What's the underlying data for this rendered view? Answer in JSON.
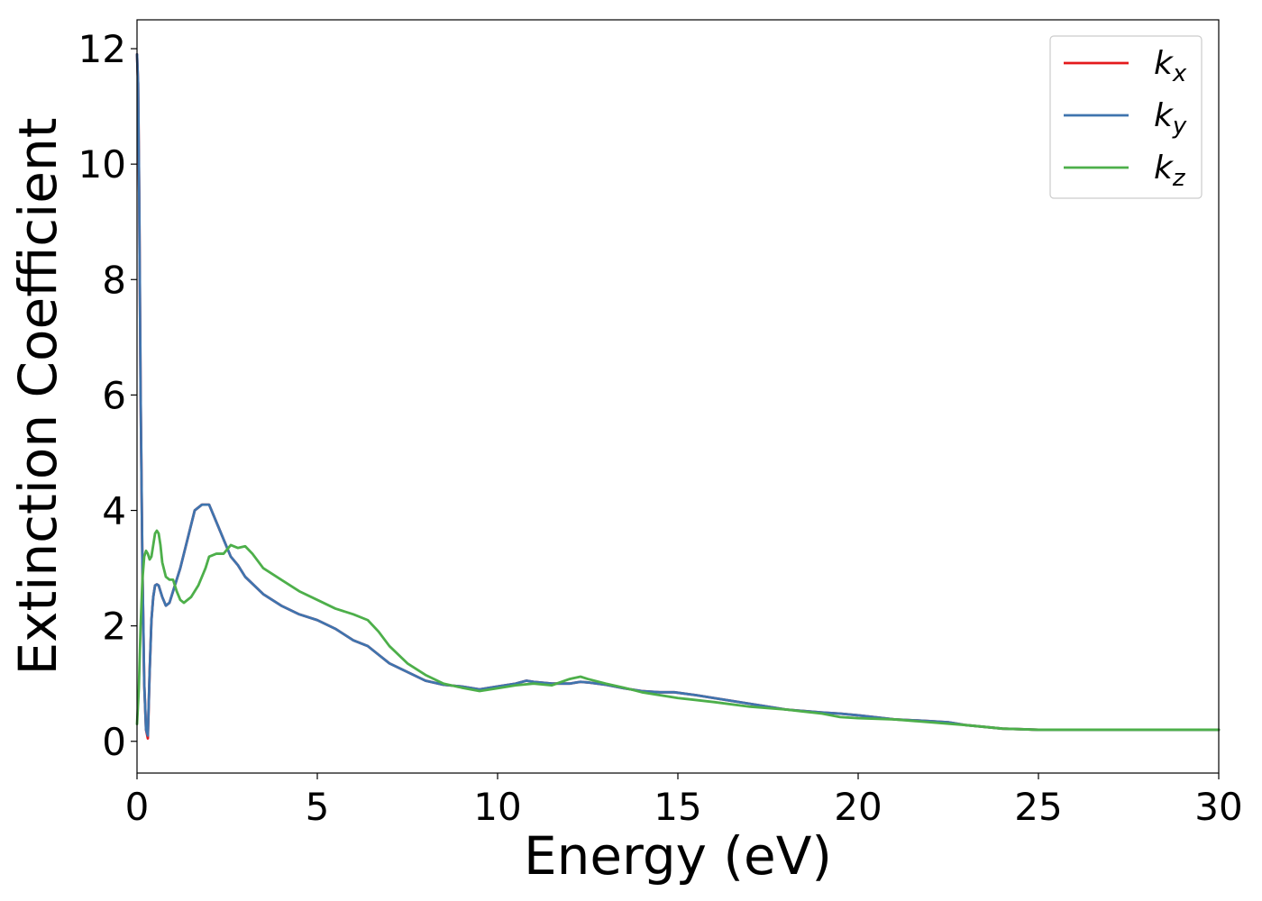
{
  "chart_data": {
    "type": "line",
    "title": "",
    "xlabel": "Energy (eV)",
    "ylabel": "Extinction Coefficient",
    "xlim": [
      0,
      30
    ],
    "ylim": [
      -0.55,
      12.5
    ],
    "xticks": [
      0,
      5,
      10,
      15,
      20,
      25,
      30
    ],
    "yticks": [
      0,
      2,
      4,
      6,
      8,
      10,
      12
    ],
    "grid": false,
    "legend_position": "top-right",
    "series": [
      {
        "name": "k",
        "subscript": "x",
        "color": "#e41a1c",
        "x": [
          0,
          0.03,
          0.06,
          0.1,
          0.15,
          0.2,
          0.25,
          0.3,
          0.35,
          0.4,
          0.45,
          0.5,
          0.55,
          0.6,
          0.7,
          0.8,
          0.9,
          1.0,
          1.2,
          1.4,
          1.6,
          1.8,
          2.0,
          2.2,
          2.4,
          2.6,
          2.8,
          3.0,
          3.5,
          4.0,
          4.5,
          5.0,
          5.5,
          6.0,
          6.4,
          6.7,
          7.0,
          7.5,
          8.0,
          8.5,
          9.0,
          9.5,
          10.0,
          10.5,
          10.8,
          11.0,
          11.5,
          12.0,
          12.3,
          12.5,
          13.0,
          13.5,
          14.0,
          14.5,
          14.9,
          15.5,
          16.0,
          17.0,
          18.0,
          19.0,
          19.5,
          20.0,
          21.0,
          22.0,
          22.5,
          23.0,
          24.0,
          25.0,
          26.0,
          27.0,
          28.0,
          29.0,
          30.0
        ],
        "y": [
          11.9,
          11.4,
          9.5,
          6.0,
          3.0,
          1.0,
          0.2,
          0.05,
          1.2,
          2.1,
          2.5,
          2.7,
          2.72,
          2.7,
          2.5,
          2.35,
          2.4,
          2.6,
          3.0,
          3.5,
          4.0,
          4.1,
          4.1,
          3.8,
          3.5,
          3.2,
          3.05,
          2.85,
          2.55,
          2.35,
          2.2,
          2.1,
          1.95,
          1.75,
          1.65,
          1.5,
          1.35,
          1.2,
          1.05,
          0.98,
          0.95,
          0.9,
          0.95,
          1.0,
          1.05,
          1.03,
          1.0,
          1.0,
          1.03,
          1.02,
          0.98,
          0.92,
          0.87,
          0.85,
          0.85,
          0.8,
          0.75,
          0.65,
          0.55,
          0.5,
          0.48,
          0.45,
          0.38,
          0.35,
          0.33,
          0.28,
          0.22,
          0.2,
          0.2,
          0.2,
          0.2,
          0.2,
          0.2
        ]
      },
      {
        "name": "k",
        "subscript": "y",
        "color": "#3f74ae",
        "x": [
          0,
          0.03,
          0.06,
          0.1,
          0.15,
          0.2,
          0.25,
          0.3,
          0.35,
          0.4,
          0.45,
          0.5,
          0.55,
          0.6,
          0.7,
          0.8,
          0.9,
          1.0,
          1.2,
          1.4,
          1.6,
          1.8,
          2.0,
          2.2,
          2.4,
          2.6,
          2.8,
          3.0,
          3.5,
          4.0,
          4.5,
          5.0,
          5.5,
          6.0,
          6.4,
          6.7,
          7.0,
          7.5,
          8.0,
          8.5,
          9.0,
          9.5,
          10.0,
          10.5,
          10.8,
          11.0,
          11.5,
          12.0,
          12.3,
          12.5,
          13.0,
          13.5,
          14.0,
          14.5,
          14.9,
          15.5,
          16.0,
          17.0,
          18.0,
          19.0,
          19.5,
          20.0,
          21.0,
          22.0,
          22.5,
          23.0,
          24.0,
          25.0,
          26.0,
          27.0,
          28.0,
          29.0,
          30.0
        ],
        "y": [
          11.9,
          11.4,
          9.5,
          6.0,
          3.0,
          1.0,
          0.2,
          0.1,
          1.2,
          2.1,
          2.5,
          2.7,
          2.72,
          2.7,
          2.5,
          2.35,
          2.4,
          2.6,
          3.0,
          3.5,
          4.0,
          4.1,
          4.1,
          3.8,
          3.5,
          3.2,
          3.05,
          2.85,
          2.55,
          2.35,
          2.2,
          2.1,
          1.95,
          1.75,
          1.65,
          1.5,
          1.35,
          1.2,
          1.05,
          0.98,
          0.95,
          0.9,
          0.95,
          1.0,
          1.05,
          1.03,
          1.0,
          1.0,
          1.03,
          1.02,
          0.98,
          0.92,
          0.87,
          0.85,
          0.85,
          0.8,
          0.75,
          0.65,
          0.55,
          0.5,
          0.48,
          0.45,
          0.38,
          0.35,
          0.33,
          0.28,
          0.22,
          0.2,
          0.2,
          0.2,
          0.2,
          0.2,
          0.2
        ]
      },
      {
        "name": "k",
        "subscript": "z",
        "color": "#4daf4a",
        "x": [
          0,
          0.05,
          0.1,
          0.15,
          0.2,
          0.25,
          0.3,
          0.35,
          0.4,
          0.45,
          0.5,
          0.55,
          0.6,
          0.65,
          0.7,
          0.8,
          0.9,
          1.0,
          1.1,
          1.2,
          1.3,
          1.5,
          1.7,
          1.9,
          2.0,
          2.2,
          2.4,
          2.6,
          2.8,
          3.0,
          3.2,
          3.5,
          4.0,
          4.5,
          5.0,
          5.5,
          6.0,
          6.4,
          6.7,
          7.0,
          7.5,
          8.0,
          8.5,
          9.0,
          9.5,
          10.0,
          10.5,
          11.0,
          11.5,
          12.0,
          12.3,
          12.5,
          13.0,
          13.5,
          14.0,
          15.0,
          16.0,
          17.0,
          18.0,
          19.0,
          19.5,
          20.0,
          21.0,
          22.0,
          23.0,
          24.0,
          25.0,
          26.0,
          27.0,
          28.0,
          29.0,
          30.0
        ],
        "y": [
          0.3,
          0.9,
          2.0,
          2.8,
          3.2,
          3.3,
          3.25,
          3.15,
          3.2,
          3.4,
          3.6,
          3.65,
          3.6,
          3.4,
          3.1,
          2.85,
          2.8,
          2.8,
          2.6,
          2.45,
          2.4,
          2.5,
          2.7,
          3.0,
          3.2,
          3.25,
          3.25,
          3.4,
          3.35,
          3.38,
          3.25,
          3.0,
          2.8,
          2.6,
          2.45,
          2.3,
          2.2,
          2.1,
          1.9,
          1.65,
          1.35,
          1.15,
          1.0,
          0.93,
          0.87,
          0.92,
          0.97,
          1.0,
          0.97,
          1.08,
          1.12,
          1.08,
          1.0,
          0.93,
          0.85,
          0.75,
          0.68,
          0.6,
          0.55,
          0.48,
          0.42,
          0.4,
          0.38,
          0.33,
          0.28,
          0.22,
          0.2,
          0.2,
          0.2,
          0.2,
          0.2,
          0.2
        ]
      }
    ]
  }
}
